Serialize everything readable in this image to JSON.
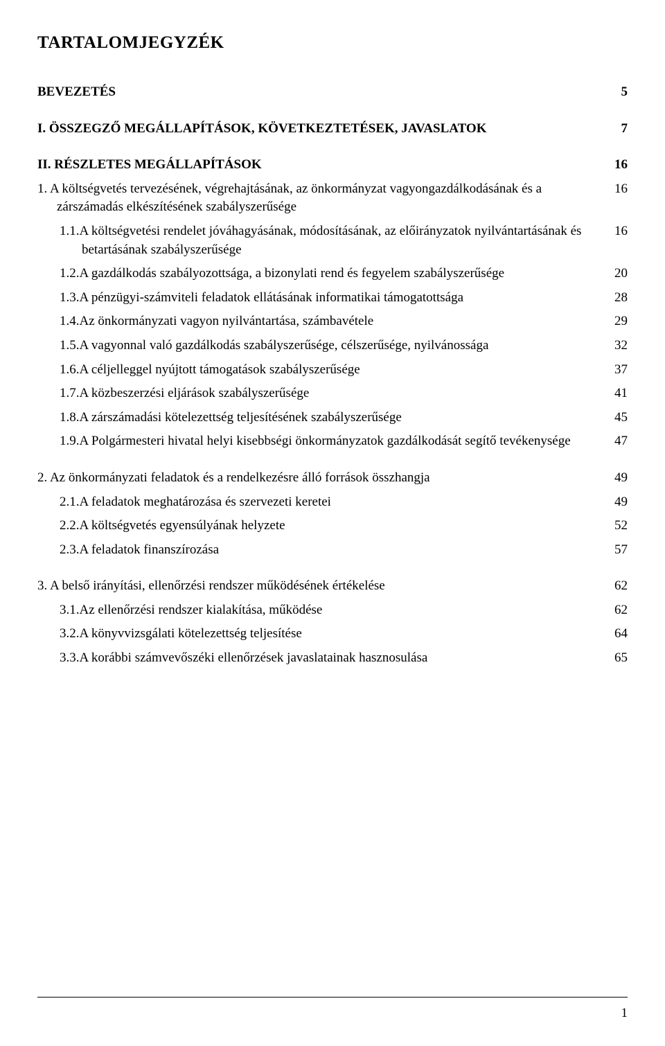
{
  "title": "TARTALOMJEGYZÉK",
  "page_number": "1",
  "fonts": {
    "family": "Georgia, 'Times New Roman', serif",
    "title_size_pt": 19,
    "body_size_pt": 14
  },
  "colors": {
    "text": "#000000",
    "background": "#ffffff",
    "rule": "#000000"
  },
  "entries": [
    {
      "label": "BEVEZETÉS",
      "page": "5",
      "bold": true,
      "level": "a",
      "gap": "lg"
    },
    {
      "label": "I. ÖSSZEGZŐ MEGÁLLAPÍTÁSOK, KÖVETKEZTETÉSEK, JAVASLATOK",
      "page": "7",
      "bold": true,
      "level": "a",
      "gap": "lg"
    },
    {
      "label": "II. RÉSZLETES MEGÁLLAPÍTÁSOK",
      "page": "16",
      "bold": true,
      "level": "a",
      "gap": "lg"
    },
    {
      "label": "1.  A költségvetés tervezésének, végrehajtásának, az önkormányzat vagyongazdálkodásának és a zárszámadás elkészítésének szabályszerűsége",
      "page": "16",
      "bold": false,
      "level": "b",
      "gap": "sm"
    },
    {
      "label": "1.1.A költségvetési rendelet jóváhagyásának, módosításának, az előirányzatok nyilvántartásának és betartásának szabályszerűsége",
      "page": "16",
      "bold": false,
      "level": "c",
      "gap": "sm"
    },
    {
      "label": "1.2.A gazdálkodás szabályozottsága, a bizonylati rend és fegyelem szabályszerűsége",
      "page": "20",
      "bold": false,
      "level": "c",
      "gap": "sm"
    },
    {
      "label": "1.3.A pénzügyi-számviteli feladatok ellátásának informatikai támogatottsága",
      "page": "28",
      "bold": false,
      "level": "c",
      "gap": "sm"
    },
    {
      "label": "1.4.Az önkormányzati vagyon nyilvántartása, számbavétele",
      "page": "29",
      "bold": false,
      "level": "c",
      "gap": "sm"
    },
    {
      "label": "1.5.A vagyonnal való gazdálkodás szabályszerűsége, célszerűsége, nyilvánossága",
      "page": "32",
      "bold": false,
      "level": "c",
      "gap": "sm"
    },
    {
      "label": "1.6.A céljelleggel nyújtott támogatások szabályszerűsége",
      "page": "37",
      "bold": false,
      "level": "c",
      "gap": "sm"
    },
    {
      "label": "1.7.A közbeszerzési eljárások szabályszerűsége",
      "page": "41",
      "bold": false,
      "level": "c",
      "gap": "sm"
    },
    {
      "label": "1.8.A zárszámadási kötelezettség teljesítésének szabályszerűsége",
      "page": "45",
      "bold": false,
      "level": "c",
      "gap": "sm"
    },
    {
      "label": "1.9.A Polgármesteri hivatal helyi kisebbségi önkormányzatok gazdálkodását segítő tevékenysége",
      "page": "47",
      "bold": false,
      "level": "c",
      "gap": "sm"
    },
    {
      "label": "2.  Az önkormányzati feladatok és a rendelkezésre álló források összhangja",
      "page": "49",
      "bold": false,
      "level": "b",
      "gap": "lg"
    },
    {
      "label": "2.1.A feladatok meghatározása és szervezeti keretei",
      "page": "49",
      "bold": false,
      "level": "c",
      "gap": "sm"
    },
    {
      "label": "2.2.A költségvetés egyensúlyának helyzete",
      "page": "52",
      "bold": false,
      "level": "c",
      "gap": "sm"
    },
    {
      "label": "2.3.A feladatok finanszírozása",
      "page": "57",
      "bold": false,
      "level": "c",
      "gap": "sm"
    },
    {
      "label": "3.  A belső irányítási, ellenőrzési rendszer működésének értékelése",
      "page": "62",
      "bold": false,
      "level": "b",
      "gap": "lg"
    },
    {
      "label": "3.1.Az ellenőrzési rendszer kialakítása, működése",
      "page": "62",
      "bold": false,
      "level": "c",
      "gap": "sm"
    },
    {
      "label": "3.2.A könyvvizsgálati kötelezettség teljesítése",
      "page": "64",
      "bold": false,
      "level": "c",
      "gap": "sm"
    },
    {
      "label": "3.3.A korábbi számvevőszéki ellenőrzések javaslatainak hasznosulása",
      "page": "65",
      "bold": false,
      "level": "c",
      "gap": "sm"
    }
  ]
}
